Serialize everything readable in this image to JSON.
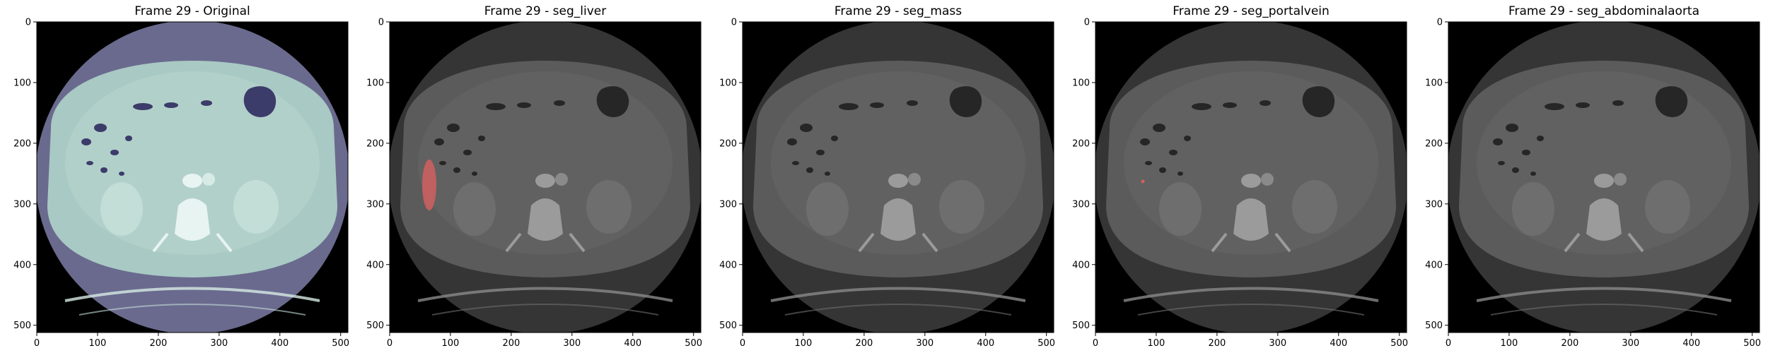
{
  "figure": {
    "panels": [
      {
        "title": "Frame 29 - Original",
        "style": "original",
        "overlay": null
      },
      {
        "title": "Frame 29 - seg_liver",
        "style": "gray",
        "overlay": "liver"
      },
      {
        "title": "Frame 29 - seg_mass",
        "style": "gray",
        "overlay": null
      },
      {
        "title": "Frame 29 - seg_portalvein",
        "style": "gray",
        "overlay": "portalvein"
      },
      {
        "title": "Frame 29 - seg_abdominalaorta",
        "style": "gray",
        "overlay": null
      }
    ],
    "ticks": [
      "0",
      "100",
      "200",
      "300",
      "400",
      "500"
    ],
    "tick_values": [
      0,
      100,
      200,
      300,
      400,
      500
    ],
    "image_extent": 512,
    "colors": {
      "original_body": "#a9c9c4",
      "original_fov": "#6a6a8e",
      "gray_body": "#5b5b5b",
      "gray_fov": "#353535",
      "overlay": "#e06060",
      "background": "#000000"
    }
  }
}
